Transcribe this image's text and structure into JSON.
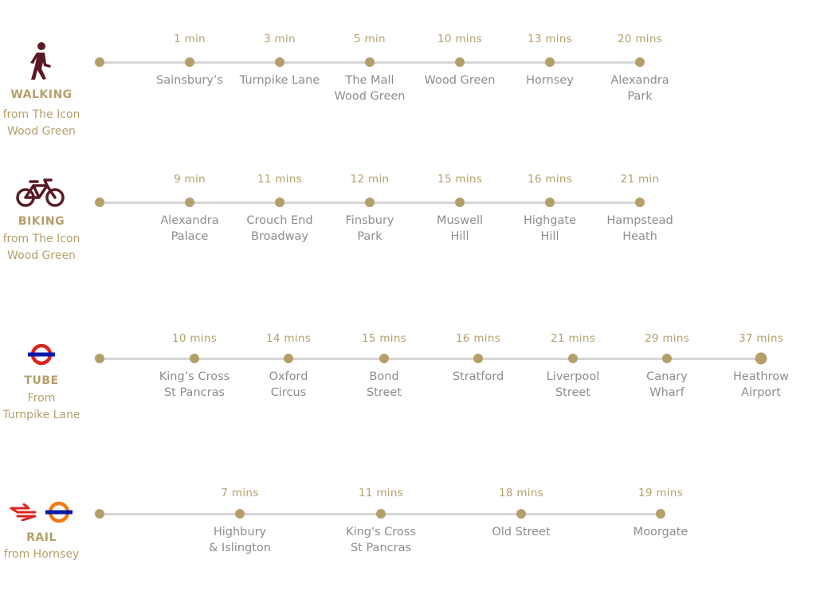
{
  "colors": {
    "gold": "#b5a06b",
    "track": "#d6d6d6",
    "place_text": "#8d8d8d",
    "walking_icon": "#5a1a24",
    "tube_red": "#dc241f",
    "tube_blue": "#0019a8",
    "overground_orange": "#ef7b10"
  },
  "walking": {
    "icon": "walking-person-icon",
    "title": "WALKING",
    "from": "from The Icon\nWood Green",
    "stops": [
      {
        "time": "1 min",
        "place": "Sainsbury’s"
      },
      {
        "time": "3 min",
        "place": "Turnpike Lane"
      },
      {
        "time": "5 min",
        "place": "The Mall\nWood Green"
      },
      {
        "time": "10  mins",
        "place": "Wood Green"
      },
      {
        "time": "13 mins",
        "place": "Hornsey"
      },
      {
        "time": "20 mins",
        "place": "Alexandra\nPark"
      }
    ]
  },
  "biking": {
    "icon": "bicycle-icon",
    "title": "BIKING",
    "from": "from The Icon\nWood Green",
    "stops": [
      {
        "time": "9 min",
        "place": "Alexandra\nPalace"
      },
      {
        "time": "11 mins",
        "place": "Crouch End\nBroadway"
      },
      {
        "time": "12 min",
        "place": "Finsbury\nPark"
      },
      {
        "time": "15  mins",
        "place": "Muswell\nHill"
      },
      {
        "time": "16 mins",
        "place": "Highgate\nHill"
      },
      {
        "time": "21 min",
        "place": "Hampstead\nHeath"
      }
    ]
  },
  "tube": {
    "icon": "underground-roundel-icon",
    "title": "TUBE",
    "from": "From\nTurnpike Lane",
    "stops": [
      {
        "time": "10 mins",
        "place": "King’s Cross\nSt Pancras"
      },
      {
        "time": "14 mins",
        "place": "Oxford\nCircus"
      },
      {
        "time": "15 mins",
        "place": "Bond\nStreet"
      },
      {
        "time": "16 mins",
        "place": "Stratford"
      },
      {
        "time": "21 mins",
        "place": "Liverpool\nStreet"
      },
      {
        "time": "29 mins",
        "place": "Canary\nWharf"
      },
      {
        "time": "37 mins",
        "place": "Heathrow\nAirport"
      }
    ]
  },
  "rail": {
    "icons": [
      "national-rail-icon",
      "overground-roundel-icon"
    ],
    "title": "RAIL",
    "from": "from Hornsey",
    "stops": [
      {
        "time": "7 mins",
        "place": "Highbury\n& Islington"
      },
      {
        "time": "11 mins",
        "place": "King's Cross\nSt Pancras"
      },
      {
        "time": "18 mins",
        "place": "Old Street"
      },
      {
        "time": "19 mins",
        "place": "Moorgate"
      }
    ]
  }
}
